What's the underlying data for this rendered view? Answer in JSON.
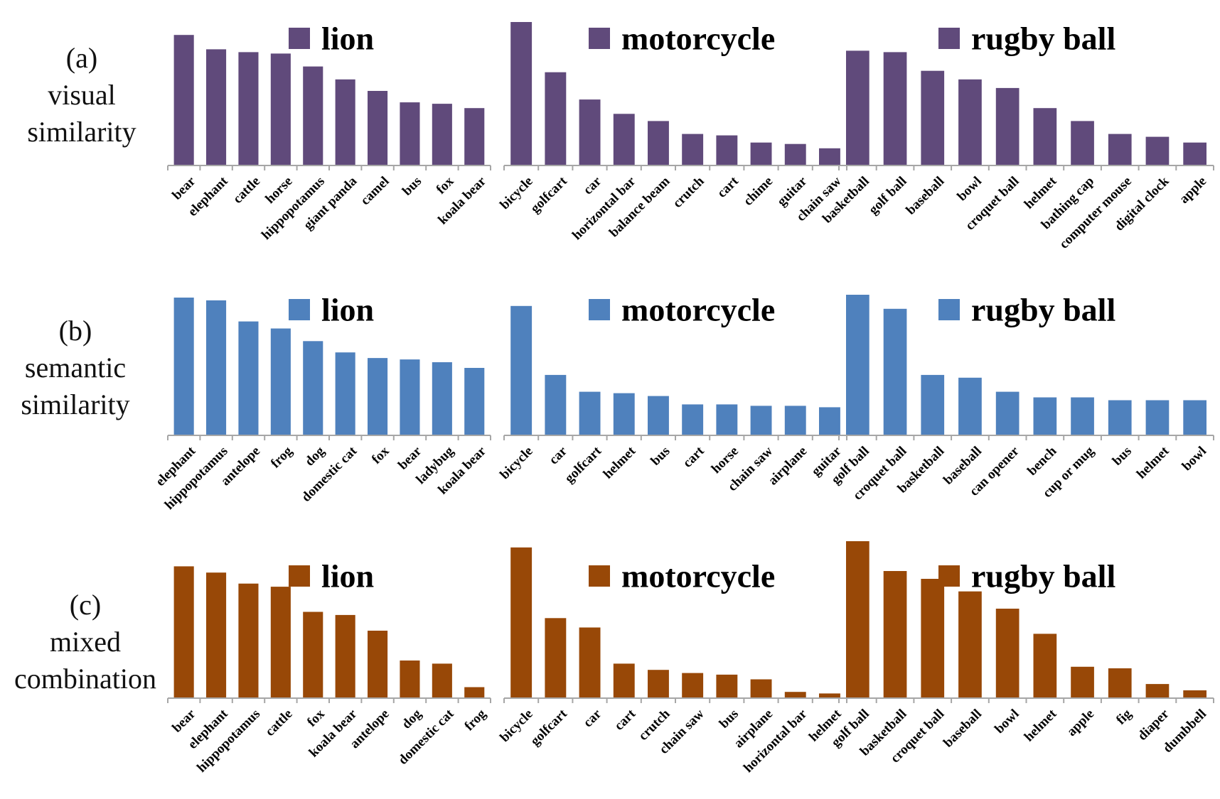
{
  "rows": [
    {
      "index_label": "(a)",
      "name_lines": [
        "visual",
        "similarity"
      ]
    },
    {
      "index_label": "(b)",
      "name_lines": [
        "semantic",
        "similarity"
      ]
    },
    {
      "index_label": "(c)",
      "name_lines": [
        "mixed",
        "combination"
      ]
    }
  ],
  "colors": {
    "visual": "#604a7b",
    "semantic": "#4f81bd",
    "mixed": "#984807",
    "axis": "#a6a6a6"
  },
  "chart_data": [
    {
      "type": "bar",
      "row": 0,
      "col": 0,
      "color": "#604a7b",
      "legend": "lion",
      "categories": [
        "bear",
        "elephant",
        "cattle",
        "horse",
        "hippopotamus",
        "giant panda",
        "camel",
        "bus",
        "fox",
        "koala bear"
      ],
      "values": [
        0.91,
        0.81,
        0.79,
        0.78,
        0.69,
        0.6,
        0.52,
        0.44,
        0.43,
        0.4
      ],
      "ylim": [
        0,
        1
      ]
    },
    {
      "type": "bar",
      "row": 0,
      "col": 1,
      "color": "#604a7b",
      "legend": "motorcycle",
      "categories": [
        "bicycle",
        "golfcart",
        "car",
        "horizontal bar",
        "balance beam",
        "crutch",
        "cart",
        "chime",
        "guitar",
        "chain saw"
      ],
      "values": [
        1.0,
        0.65,
        0.46,
        0.36,
        0.31,
        0.22,
        0.21,
        0.16,
        0.15,
        0.12
      ],
      "ylim": [
        0,
        1
      ]
    },
    {
      "type": "bar",
      "row": 0,
      "col": 2,
      "color": "#604a7b",
      "legend": "rugby ball",
      "categories": [
        "basketball",
        "golf ball",
        "baseball",
        "bowl",
        "croquet ball",
        "helmet",
        "bathing cap",
        "computer mouse",
        "digital clock",
        "apple"
      ],
      "values": [
        0.8,
        0.79,
        0.66,
        0.6,
        0.54,
        0.4,
        0.31,
        0.22,
        0.2,
        0.16
      ],
      "ylim": [
        0,
        1
      ]
    },
    {
      "type": "bar",
      "row": 1,
      "col": 0,
      "color": "#4f81bd",
      "legend": "lion",
      "categories": [
        "elephant",
        "hippopotamus",
        "antelope",
        "frog",
        "dog",
        "domestic cat",
        "fox",
        "bear",
        "ladybug",
        "koala bear"
      ],
      "values": [
        0.98,
        0.96,
        0.81,
        0.76,
        0.67,
        0.59,
        0.55,
        0.54,
        0.52,
        0.48
      ],
      "ylim": [
        0,
        1
      ]
    },
    {
      "type": "bar",
      "row": 1,
      "col": 1,
      "color": "#4f81bd",
      "legend": "motorcycle",
      "categories": [
        "bicycle",
        "car",
        "golfcart",
        "helmet",
        "bus",
        "cart",
        "horse",
        "chain saw",
        "airplane",
        "guitar"
      ],
      "values": [
        0.92,
        0.43,
        0.31,
        0.3,
        0.28,
        0.22,
        0.22,
        0.21,
        0.21,
        0.2
      ],
      "ylim": [
        0,
        1
      ]
    },
    {
      "type": "bar",
      "row": 1,
      "col": 2,
      "color": "#4f81bd",
      "legend": "rugby ball",
      "categories": [
        "golf ball",
        "croquet ball",
        "basketball",
        "baseball",
        "can opener",
        "bench",
        "cup or mug",
        "bus",
        "helmet",
        "bowl"
      ],
      "values": [
        1.0,
        0.9,
        0.43,
        0.41,
        0.31,
        0.27,
        0.27,
        0.25,
        0.25,
        0.25
      ],
      "ylim": [
        0,
        1
      ]
    },
    {
      "type": "bar",
      "row": 2,
      "col": 0,
      "color": "#984807",
      "legend": "lion",
      "categories": [
        "bear",
        "elephant",
        "hippopotamus",
        "cattle",
        "fox",
        "koala bear",
        "antelope",
        "dog",
        "domestic cat",
        "frog"
      ],
      "values": [
        0.84,
        0.8,
        0.73,
        0.71,
        0.55,
        0.53,
        0.43,
        0.24,
        0.22,
        0.07
      ],
      "ylim": [
        0,
        1
      ]
    },
    {
      "type": "bar",
      "row": 2,
      "col": 1,
      "color": "#984807",
      "legend": "motorcycle",
      "categories": [
        "bicycle",
        "golfcart",
        "car",
        "cart",
        "crutch",
        "chain saw",
        "bus",
        "airplane",
        "horizontal bar",
        "helmet"
      ],
      "values": [
        0.96,
        0.51,
        0.45,
        0.22,
        0.18,
        0.16,
        0.15,
        0.12,
        0.04,
        0.03
      ],
      "ylim": [
        0,
        1
      ]
    },
    {
      "type": "bar",
      "row": 2,
      "col": 2,
      "color": "#984807",
      "legend": "rugby ball",
      "categories": [
        "golf ball",
        "basketball",
        "croquet ball",
        "baseball",
        "bowl",
        "helmet",
        "apple",
        "fig",
        "diaper",
        "dumbbell"
      ],
      "values": [
        1.0,
        0.81,
        0.76,
        0.68,
        0.57,
        0.41,
        0.2,
        0.19,
        0.09,
        0.05
      ],
      "ylim": [
        0,
        1
      ]
    }
  ]
}
